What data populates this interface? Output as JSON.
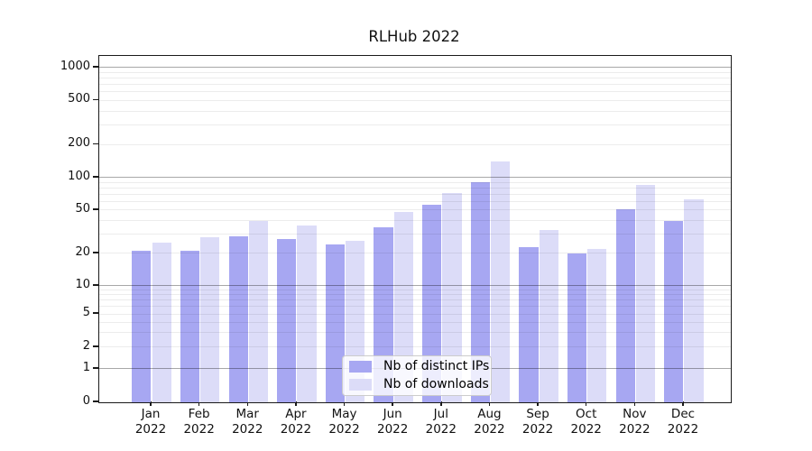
{
  "chart_data": {
    "type": "bar",
    "title": "RLHub 2022",
    "categories": [
      "Jan 2022",
      "Feb 2022",
      "Mar 2022",
      "Apr 2022",
      "May 2022",
      "Jun 2022",
      "Jul 2022",
      "Aug 2022",
      "Sep 2022",
      "Oct 2022",
      "Nov 2022",
      "Dec 2022"
    ],
    "series": [
      {
        "name": "Nb of distinct IPs",
        "color": "#a7a7f2",
        "values": [
          21,
          21,
          29,
          27,
          24,
          35,
          56,
          90,
          23,
          20,
          51,
          40
        ]
      },
      {
        "name": "Nb of downloads",
        "color": "#dcdcf8",
        "values": [
          25,
          28,
          40,
          36,
          26,
          48,
          72,
          140,
          33,
          22,
          85,
          63
        ]
      }
    ],
    "xlabel": "",
    "ylabel": "",
    "yscale": "asinh",
    "yticks": [
      0,
      1,
      2,
      5,
      10,
      20,
      50,
      100,
      200,
      500,
      1000
    ],
    "ylim": [
      0,
      1300
    ],
    "grid": "horizontal",
    "legend_position": "lower center"
  }
}
